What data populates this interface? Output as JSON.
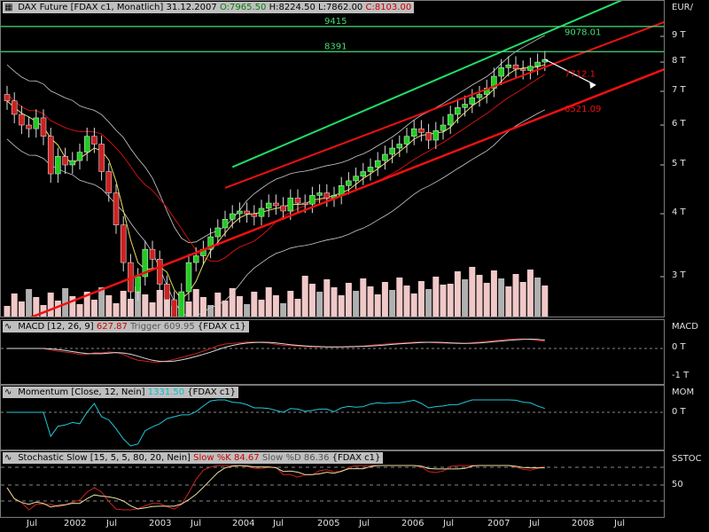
{
  "main_header": {
    "title": "DAX Future [FDAX c1, Monatlich]",
    "date": "31.12.2007",
    "open": "O:7965.50",
    "high": "H:8224.50",
    "low": "L:7862.00",
    "close": "C:8103.00"
  },
  "y_unit": "EUR/",
  "y_ticks": [
    "9 T",
    "8 T",
    "7 T",
    "6 T",
    "5 T",
    "4 T",
    "3 T"
  ],
  "x_ticks": [
    "Jul",
    "2002",
    "Jul",
    "2003",
    "Jul",
    "2004",
    "Jul",
    "2005",
    "Jul",
    "2006",
    "Jul",
    "2007",
    "Jul",
    "2008",
    "Jul"
  ],
  "annotations": {
    "level_9415": "9415",
    "level_8391": "8391",
    "level_9078": "9078.01",
    "level_7712": "7712.1",
    "level_6521": "6521.09"
  },
  "macd": {
    "header": "MACD [12, 26, 9]",
    "value": "627.87",
    "trigger_label": "Trigger",
    "trigger_value": "609.95",
    "symbol": "{FDAX c1}",
    "axis_title": "MACD",
    "ticks": [
      "0 T",
      "-1 T"
    ]
  },
  "momentum": {
    "header": "Momentum [Close, 12, Nein]",
    "value": "1331.50",
    "symbol": "{FDAX c1}",
    "axis_title": "MOM",
    "ticks": [
      "0 T"
    ]
  },
  "stochastic": {
    "header": "Stochastic Slow [15, 5, 5, 80, 20, Nein]",
    "k_label": "Slow %K",
    "k_value": "84.67",
    "d_label": "Slow %D",
    "d_value": "86.36",
    "symbol": "{FDAX c1}",
    "axis_title": "SSTOC",
    "ticks": [
      "50"
    ]
  },
  "colors": {
    "up_candle": "#22cc22",
    "down_candle": "#cc2222",
    "trend_red": "#ee1111",
    "trend_green": "#22dd66",
    "level_line": "#44dd77",
    "volume": "#f0c8c8",
    "volume_dark": "#b0b0b0"
  },
  "chart_data": {
    "type": "candlestick",
    "symbol": "FDAX c1",
    "interval": "monthly",
    "y_scale": "log",
    "ylim": [
      2500,
      10000
    ],
    "x_range": [
      "2001-01",
      "2008-12"
    ],
    "close": [
      6700,
      6300,
      6000,
      5900,
      6200,
      5700,
      4800,
      5200,
      5000,
      5100,
      5300,
      5700,
      5500,
      4850,
      4400,
      3800,
      3200,
      2800,
      3000,
      3400,
      3250,
      2900,
      2700,
      2450,
      2800,
      3200,
      3300,
      3400,
      3600,
      3750,
      3900,
      4000,
      4050,
      4000,
      3950,
      4100,
      4200,
      4150,
      4050,
      4300,
      4200,
      4180,
      4350,
      4400,
      4300,
      4350,
      4550,
      4650,
      4750,
      4850,
      4950,
      5100,
      5250,
      5400,
      5500,
      5700,
      5900,
      5800,
      5600,
      5850,
      6000,
      6300,
      6500,
      6600,
      6800,
      6900,
      7100,
      7500,
      7800,
      7900,
      7750,
      7700,
      7850,
      8000,
      8100
    ],
    "start": "2001-10",
    "levels": [
      9415,
      8391,
      9078.01,
      7712.1,
      6521.09
    ],
    "ytick_values": [
      9000,
      8000,
      7000,
      6000,
      5000,
      4000,
      3000
    ],
    "ytick_labels": [
      "9 T",
      "8 T",
      "7 T",
      "6 T",
      "5 T",
      "4 T",
      "3 T"
    ]
  }
}
